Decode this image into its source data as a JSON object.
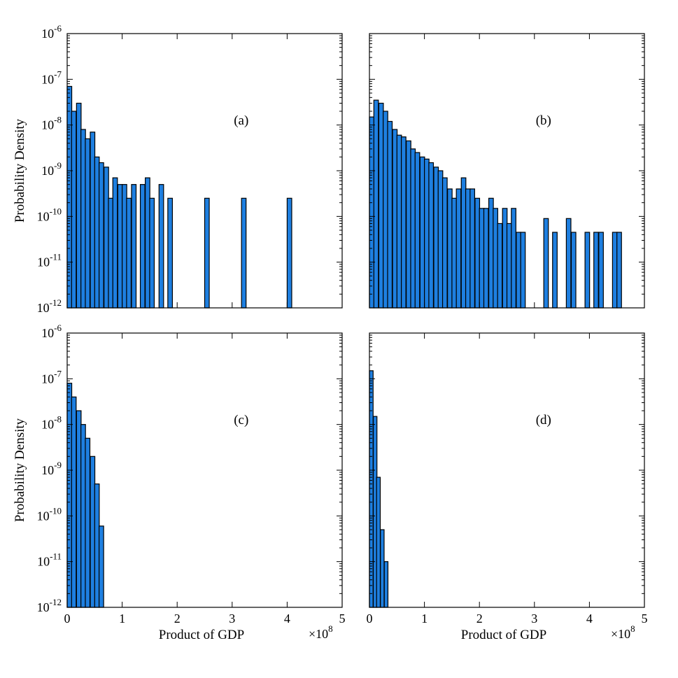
{
  "chart_data": [
    {
      "type": "bar",
      "panel_label": "(a)",
      "xlabel": "",
      "ylabel": "Probability Density",
      "xlim": [
        0,
        5
      ],
      "x_unit": "×10^8",
      "ylim": [
        1e-12,
        1e-06
      ],
      "yscale": "log",
      "bin_width": 0.0833,
      "x": [
        0.0,
        0.08,
        0.17,
        0.25,
        0.33,
        0.42,
        0.5,
        0.58,
        0.67,
        0.75,
        0.83,
        0.92,
        1.0,
        1.08,
        1.17,
        1.33,
        1.42,
        1.5,
        1.67,
        1.83,
        2.5,
        3.17,
        4.0
      ],
      "values": [
        7e-08,
        2e-08,
        3e-08,
        8e-09,
        5e-09,
        7e-09,
        2e-09,
        1.5e-09,
        1.2e-09,
        2.5e-10,
        7e-10,
        5e-10,
        5e-10,
        2.5e-10,
        5e-10,
        5e-10,
        7e-10,
        2.5e-10,
        5e-10,
        2.5e-10,
        2.5e-10,
        2.5e-10,
        2.5e-10
      ]
    },
    {
      "type": "bar",
      "panel_label": "(b)",
      "xlabel": "",
      "ylabel": "",
      "xlim": [
        0,
        5
      ],
      "x_unit": "×10^8",
      "ylim": [
        1e-12,
        1e-06
      ],
      "yscale": "log",
      "bin_width": 0.0833,
      "x": [
        0.0,
        0.08,
        0.17,
        0.25,
        0.33,
        0.42,
        0.5,
        0.58,
        0.67,
        0.75,
        0.83,
        0.92,
        1.0,
        1.08,
        1.17,
        1.25,
        1.33,
        1.42,
        1.5,
        1.58,
        1.67,
        1.75,
        1.83,
        1.92,
        2.0,
        2.08,
        2.17,
        2.25,
        2.33,
        2.42,
        2.5,
        2.58,
        2.67,
        2.75,
        3.17,
        3.33,
        3.58,
        3.67,
        3.92,
        4.08,
        4.17,
        4.42,
        4.5
      ],
      "values": [
        1.5e-08,
        3.5e-08,
        3e-08,
        2e-08,
        1.2e-08,
        8e-09,
        6e-09,
        5.5e-09,
        4.5e-09,
        3e-09,
        2.5e-09,
        2e-09,
        1.8e-09,
        1.5e-09,
        1.2e-09,
        1e-09,
        7e-10,
        4e-10,
        2.5e-10,
        4e-10,
        7e-10,
        4e-10,
        4e-10,
        2.5e-10,
        1.5e-10,
        1.5e-10,
        2.5e-10,
        1.5e-10,
        7e-11,
        1.5e-10,
        7e-11,
        1.5e-10,
        4.5e-11,
        4.5e-11,
        9e-11,
        4.5e-11,
        9e-11,
        4.5e-11,
        4.5e-11,
        4.5e-11,
        4.5e-11,
        4.5e-11,
        4.5e-11
      ]
    },
    {
      "type": "bar",
      "panel_label": "(c)",
      "xlabel": "Product of GDP",
      "ylabel": "Probability Density",
      "xlim": [
        0,
        5
      ],
      "x_unit": "×10^8",
      "ylim": [
        1e-12,
        1e-06
      ],
      "yscale": "log",
      "bin_width": 0.0833,
      "x": [
        0.0,
        0.08,
        0.17,
        0.25,
        0.33,
        0.42,
        0.5,
        0.58
      ],
      "values": [
        8e-08,
        4e-08,
        2e-08,
        1e-08,
        5e-09,
        2e-09,
        5e-10,
        6e-11
      ]
    },
    {
      "type": "bar",
      "panel_label": "(d)",
      "xlabel": "Product of GDP",
      "ylabel": "",
      "xlim": [
        0,
        5
      ],
      "x_unit": "×10^8",
      "ylim": [
        1e-12,
        1e-06
      ],
      "yscale": "log",
      "bin_width": 0.0667,
      "x": [
        0.0,
        0.07,
        0.13,
        0.2,
        0.27
      ],
      "values": [
        1.5e-07,
        1.5e-08,
        7e-10,
        5e-11,
        1e-11
      ]
    }
  ]
}
